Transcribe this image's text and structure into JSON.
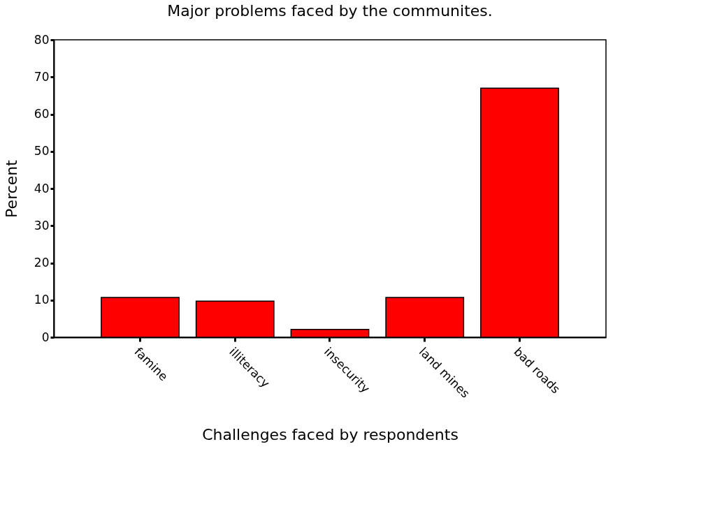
{
  "chart_data": {
    "type": "bar",
    "title": "Major problems faced by the communites.",
    "xlabel": "Challenges faced by respondents",
    "ylabel": "Percent",
    "categories": [
      "famine",
      "illiteracy",
      "insecurity",
      "land mines",
      "bad roads"
    ],
    "values": [
      10.7,
      9.7,
      2.1,
      10.7,
      67.0
    ],
    "color": "#ff0000",
    "ylim": [
      0,
      80
    ],
    "yticks": [
      0,
      10,
      20,
      30,
      40,
      50,
      60,
      70,
      80
    ],
    "grid": false
  }
}
